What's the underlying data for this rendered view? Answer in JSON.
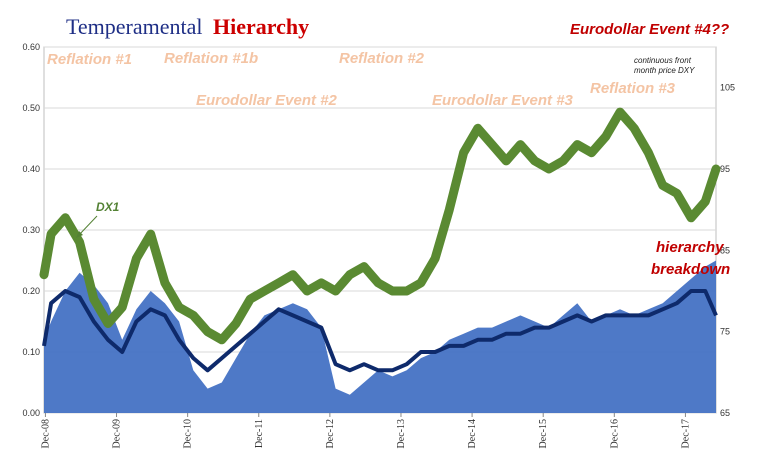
{
  "title": {
    "part1": "Temperamental",
    "part2": "Hierarchy"
  },
  "chart_data": {
    "type": "area",
    "y_left_ticks": [
      "0.00",
      "0.10",
      "0.20",
      "0.30",
      "0.40",
      "0.50",
      "0.60"
    ],
    "y_left_range": [
      0,
      0.6
    ],
    "y_right_ticks": [
      "65",
      "75",
      "85",
      "95",
      "105"
    ],
    "y_right_range": [
      65,
      110
    ],
    "x_ticks": [
      "Dec-08",
      "Dec-09",
      "Dec-10",
      "Dec-11",
      "Dec-12",
      "Dec-13",
      "Dec-14",
      "Dec-15",
      "Dec-16",
      "Dec-17"
    ],
    "grid": true,
    "series": [
      {
        "role": "area",
        "color": "#4472c4",
        "x": [
          2008.9,
          2009.0,
          2009.2,
          2009.4,
          2009.6,
          2009.8,
          2010.0,
          2010.2,
          2010.4,
          2010.6,
          2010.8,
          2011.0,
          2011.2,
          2011.4,
          2011.6,
          2011.8,
          2012.0,
          2012.2,
          2012.4,
          2012.6,
          2012.8,
          2013.0,
          2013.2,
          2013.4,
          2013.6,
          2013.8,
          2014.0,
          2014.2,
          2014.4,
          2014.6,
          2014.8,
          2015.0,
          2015.2,
          2015.4,
          2015.6,
          2015.8,
          2016.0,
          2016.2,
          2016.4,
          2016.6,
          2016.8,
          2017.0,
          2017.2,
          2017.4,
          2017.6,
          2017.8,
          2018.0,
          2018.2,
          2018.35
        ],
        "values": [
          0.12,
          0.15,
          0.2,
          0.23,
          0.21,
          0.18,
          0.12,
          0.17,
          0.2,
          0.18,
          0.15,
          0.07,
          0.04,
          0.05,
          0.09,
          0.13,
          0.16,
          0.17,
          0.18,
          0.17,
          0.14,
          0.04,
          0.03,
          0.05,
          0.07,
          0.06,
          0.07,
          0.09,
          0.1,
          0.12,
          0.13,
          0.14,
          0.14,
          0.15,
          0.16,
          0.15,
          0.14,
          0.16,
          0.18,
          0.15,
          0.16,
          0.17,
          0.16,
          0.17,
          0.18,
          0.2,
          0.22,
          0.24,
          0.25
        ]
      },
      {
        "role": "navy-line",
        "color": "#0e2a6b",
        "x": [
          2008.9,
          2009.0,
          2009.2,
          2009.4,
          2009.6,
          2009.8,
          2010.0,
          2010.2,
          2010.4,
          2010.6,
          2010.8,
          2011.0,
          2011.2,
          2011.4,
          2011.6,
          2011.8,
          2012.0,
          2012.2,
          2012.4,
          2012.6,
          2012.8,
          2013.0,
          2013.2,
          2013.4,
          2013.6,
          2013.8,
          2014.0,
          2014.2,
          2014.4,
          2014.6,
          2014.8,
          2015.0,
          2015.2,
          2015.4,
          2015.6,
          2015.8,
          2016.0,
          2016.2,
          2016.4,
          2016.6,
          2016.8,
          2017.0,
          2017.2,
          2017.4,
          2017.6,
          2017.8,
          2018.0,
          2018.2,
          2018.35
        ],
        "values": [
          0.11,
          0.18,
          0.2,
          0.19,
          0.15,
          0.12,
          0.1,
          0.15,
          0.17,
          0.16,
          0.12,
          0.09,
          0.07,
          0.09,
          0.11,
          0.13,
          0.15,
          0.17,
          0.16,
          0.15,
          0.14,
          0.08,
          0.07,
          0.08,
          0.07,
          0.07,
          0.08,
          0.1,
          0.1,
          0.11,
          0.11,
          0.12,
          0.12,
          0.13,
          0.13,
          0.14,
          0.14,
          0.15,
          0.16,
          0.15,
          0.16,
          0.16,
          0.16,
          0.16,
          0.17,
          0.18,
          0.2,
          0.2,
          0.16
        ]
      },
      {
        "role": "green-line",
        "axis": "right",
        "color": "#5a8a32",
        "x": [
          2008.9,
          2009.0,
          2009.2,
          2009.4,
          2009.6,
          2009.8,
          2010.0,
          2010.2,
          2010.4,
          2010.6,
          2010.8,
          2011.0,
          2011.2,
          2011.4,
          2011.6,
          2011.8,
          2012.0,
          2012.2,
          2012.4,
          2012.6,
          2012.8,
          2013.0,
          2013.2,
          2013.4,
          2013.6,
          2013.8,
          2014.0,
          2014.2,
          2014.4,
          2014.6,
          2014.8,
          2015.0,
          2015.2,
          2015.4,
          2015.6,
          2015.8,
          2016.0,
          2016.2,
          2016.4,
          2016.6,
          2016.8,
          2017.0,
          2017.2,
          2017.4,
          2017.6,
          2017.8,
          2018.0,
          2018.2,
          2018.35
        ],
        "values": [
          82.0,
          87.0,
          89.0,
          86.0,
          79.0,
          76.0,
          78.0,
          84.0,
          87.0,
          81.0,
          78.0,
          77.0,
          75.0,
          74.0,
          76.0,
          79.0,
          80.0,
          81.0,
          82.0,
          80.0,
          81.0,
          80.0,
          82.0,
          83.0,
          81.0,
          80.0,
          80.0,
          81.0,
          84.0,
          90.0,
          97.0,
          100.0,
          98.0,
          96.0,
          98.0,
          96.0,
          95.0,
          96.0,
          98.0,
          97.0,
          99.0,
          102.0,
          100.0,
          97.0,
          93.0,
          92.0,
          89.0,
          91.0,
          95.0
        ]
      }
    ]
  },
  "annotations": {
    "reflation1": "Reflation #1",
    "reflation1b": "Reflation #1b",
    "reflation2": "Reflation #2",
    "reflation3": "Reflation #3",
    "eurodollar2": "Eurodollar Event #2",
    "eurodollar3": "Eurodollar Event #3",
    "eurodollar4": "Eurodollar Event #4??",
    "dx1": "DX1",
    "dxy_note_line1": "continuous front",
    "dxy_note_line2": "month price DXY",
    "hierarchy_line1": "hierarchy",
    "hierarchy_line2": "breakdown"
  }
}
